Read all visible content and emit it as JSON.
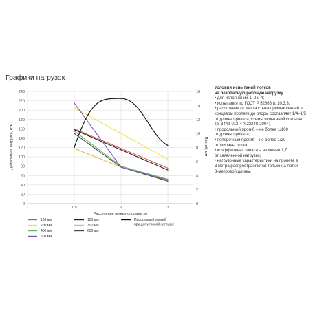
{
  "heading": "Графики нагрузок",
  "conditions": {
    "title_lines": [
      "Условия испытаний лотков",
      "на безопасную рабочую нагрузку"
    ],
    "lines": [
      "• для исполнений 1, 2 и 4;",
      "• испытания по ГОСТ Р 52868 п. 10.3.3;",
      "• расстояние от места стыка прямых секций в",
      "концевом пролете до опоры составляет 1/4–1/5",
      "от длины пролета, схемы испытаний согласно",
      "ТУ 3449-013-47022248-2004;",
      "• продольный прогиб – не более 1/100",
      "от длины пролета;",
      "• поперечный прогиб – не более 1/20",
      "от ширины лотка;",
      "• коэффициент запаса – не менее 1,7",
      "от заявленной нагрузки;",
      "• нагрузочные характеристики на пролете в",
      "3 метра распространяются только на лотки",
      "3-метровой длины."
    ]
  },
  "chart_data": {
    "type": "line",
    "xlabel": "Расстояние между опорами, м",
    "ylabel": "Допустимая нагрузка, кг/м",
    "y2label": "Прогиб, мм",
    "xlim": [
      1,
      3
    ],
    "x_ticks": [
      "1",
      "1,5",
      "2",
      "3"
    ],
    "ylim": [
      0,
      240
    ],
    "y_ticks": [
      0,
      20,
      40,
      60,
      80,
      100,
      120,
      140,
      160,
      180,
      200,
      220,
      240
    ],
    "y2lim": [
      0,
      16
    ],
    "y2_ticks": [
      0,
      2,
      4,
      6,
      8,
      10,
      12,
      14,
      16
    ],
    "grid": true,
    "legend_position": "bottom",
    "series": [
      {
        "name": "100 мм",
        "color": "#d9534f",
        "x": [
          "1,5",
          "2",
          "3"
        ],
        "values": [
          160,
          118,
          76
        ]
      },
      {
        "name": "150 мм",
        "color": "#222222",
        "x": [
          "1,5",
          "2",
          "3"
        ],
        "values": [
          158,
          115,
          72
        ]
      },
      {
        "name": "200 мм",
        "color": "#f2e24a",
        "x": [
          "1,5",
          "2",
          "3"
        ],
        "values": [
          205,
          150,
          95
        ]
      },
      {
        "name": "300 мм",
        "color": "#e8b84a",
        "x": [
          "1,5",
          "2",
          "3"
        ],
        "values": [
          118,
          78,
          52
        ]
      },
      {
        "name": "400 мм",
        "color": "#5cb85c",
        "x": [
          "1,5",
          "2",
          "3"
        ],
        "values": [
          155,
          80,
          52
        ]
      },
      {
        "name": "600 мм",
        "color": "#4a4a4a",
        "x": [
          "1,5",
          "2",
          "3"
        ],
        "values": [
          150,
          78,
          48
        ]
      },
      {
        "name": "500 мм",
        "color": "#7b4fb8",
        "x": [
          "1,5",
          "2",
          "3"
        ],
        "values": [
          215,
          78,
          50
        ]
      },
      {
        "name": "Продольный прогиб при допустимой нагрузке",
        "color": "#111111",
        "axis": "right",
        "x": [
          "1,5",
          "2",
          "3"
        ],
        "values": [
          8,
          15,
          8.3
        ]
      }
    ]
  }
}
